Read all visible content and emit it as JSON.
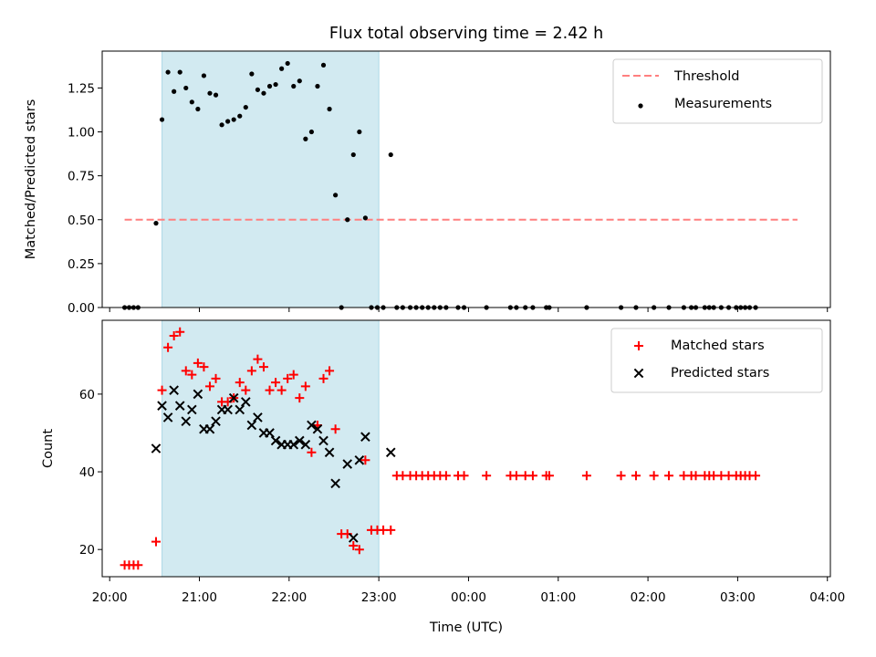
{
  "chart_data": {
    "title": "Flux total observing time = 2.42 h",
    "xlabel": "Time (UTC)",
    "x_ticks": [
      "20:00",
      "21:00",
      "22:00",
      "23:00",
      "00:00",
      "01:00",
      "02:00",
      "03:00",
      "04:00"
    ],
    "x_range": [
      "19:55",
      "04:02"
    ],
    "shaded_interval": [
      "20:35",
      "23:00"
    ],
    "shade_color": "#add8e6",
    "panels": [
      {
        "type": "scatter",
        "ylabel": "Matched/Predicted stars",
        "ylim": [
          0,
          1.46
        ],
        "yticks": [
          "0.00",
          "0.25",
          "0.50",
          "0.75",
          "1.00",
          "1.25"
        ],
        "legend_position": "top-right",
        "threshold": {
          "name": "Threshold",
          "value": 0.5,
          "x_start": "20:10",
          "x_end": "03:40",
          "color": "#ff7f7f"
        },
        "series": [
          {
            "name": "Measurements",
            "color": "#000000",
            "marker": "dot",
            "points": [
              [
                "20:10",
                0
              ],
              [
                "20:13",
                0
              ],
              [
                "20:16",
                0
              ],
              [
                "20:19",
                0
              ],
              [
                "20:31",
                0.48
              ],
              [
                "20:35",
                1.07
              ],
              [
                "20:39",
                1.34
              ],
              [
                "20:43",
                1.23
              ],
              [
                "20:47",
                1.34
              ],
              [
                "20:51",
                1.25
              ],
              [
                "20:55",
                1.17
              ],
              [
                "20:59",
                1.13
              ],
              [
                "21:03",
                1.32
              ],
              [
                "21:07",
                1.22
              ],
              [
                "21:11",
                1.21
              ],
              [
                "21:15",
                1.04
              ],
              [
                "21:19",
                1.06
              ],
              [
                "21:23",
                1.07
              ],
              [
                "21:27",
                1.09
              ],
              [
                "21:31",
                1.14
              ],
              [
                "21:35",
                1.33
              ],
              [
                "21:39",
                1.24
              ],
              [
                "21:43",
                1.22
              ],
              [
                "21:47",
                1.26
              ],
              [
                "21:51",
                1.27
              ],
              [
                "21:55",
                1.36
              ],
              [
                "21:59",
                1.39
              ],
              [
                "22:03",
                1.26
              ],
              [
                "22:07",
                1.29
              ],
              [
                "22:11",
                0.96
              ],
              [
                "22:15",
                1.0
              ],
              [
                "22:19",
                1.26
              ],
              [
                "22:23",
                1.38
              ],
              [
                "22:27",
                1.13
              ],
              [
                "22:31",
                0.64
              ],
              [
                "22:35",
                0
              ],
              [
                "22:39",
                0.5
              ],
              [
                "22:43",
                0.87
              ],
              [
                "22:47",
                1.0
              ],
              [
                "22:51",
                0.51
              ],
              [
                "22:55",
                0
              ],
              [
                "22:59",
                0
              ],
              [
                "23:03",
                0
              ],
              [
                "23:08",
                0.87
              ],
              [
                "23:12",
                0
              ],
              [
                "23:16",
                0
              ],
              [
                "23:21",
                0
              ],
              [
                "23:25",
                0
              ],
              [
                "23:29",
                0
              ],
              [
                "23:33",
                0
              ],
              [
                "23:37",
                0
              ],
              [
                "23:41",
                0
              ],
              [
                "23:45",
                0
              ],
              [
                "23:53",
                0
              ],
              [
                "23:57",
                0
              ],
              [
                "00:12",
                0
              ],
              [
                "00:28",
                0
              ],
              [
                "00:32",
                0
              ],
              [
                "00:38",
                0
              ],
              [
                "00:43",
                0
              ],
              [
                "00:52",
                0
              ],
              [
                "00:54",
                0
              ],
              [
                "01:19",
                0
              ],
              [
                "01:42",
                0
              ],
              [
                "01:52",
                0
              ],
              [
                "02:04",
                0
              ],
              [
                "02:14",
                0
              ],
              [
                "02:24",
                0
              ],
              [
                "02:29",
                0
              ],
              [
                "02:32",
                0
              ],
              [
                "02:38",
                0
              ],
              [
                "02:41",
                0
              ],
              [
                "02:44",
                0
              ],
              [
                "02:49",
                0
              ],
              [
                "02:54",
                0
              ],
              [
                "02:59",
                0
              ],
              [
                "03:02",
                0
              ],
              [
                "03:05",
                0
              ],
              [
                "03:08",
                0
              ],
              [
                "03:12",
                0
              ]
            ]
          }
        ]
      },
      {
        "type": "scatter",
        "ylabel": "Count",
        "ylim": [
          13,
          79
        ],
        "yticks": [
          "20",
          "40",
          "60"
        ],
        "legend_position": "top-right",
        "series": [
          {
            "name": "Matched stars",
            "color": "#ff0000",
            "marker": "plus",
            "points": [
              [
                "20:10",
                16
              ],
              [
                "20:13",
                16
              ],
              [
                "20:16",
                16
              ],
              [
                "20:19",
                16
              ],
              [
                "20:31",
                22
              ],
              [
                "20:35",
                61
              ],
              [
                "20:39",
                72
              ],
              [
                "20:43",
                75
              ],
              [
                "20:47",
                76
              ],
              [
                "20:51",
                66
              ],
              [
                "20:55",
                65
              ],
              [
                "20:59",
                68
              ],
              [
                "21:03",
                67
              ],
              [
                "21:07",
                62
              ],
              [
                "21:11",
                64
              ],
              [
                "21:15",
                58
              ],
              [
                "21:19",
                58
              ],
              [
                "21:23",
                59
              ],
              [
                "21:27",
                63
              ],
              [
                "21:31",
                61
              ],
              [
                "21:35",
                66
              ],
              [
                "21:39",
                69
              ],
              [
                "21:43",
                67
              ],
              [
                "21:47",
                61
              ],
              [
                "21:51",
                63
              ],
              [
                "21:55",
                61
              ],
              [
                "21:59",
                64
              ],
              [
                "22:03",
                65
              ],
              [
                "22:07",
                59
              ],
              [
                "22:11",
                62
              ],
              [
                "22:15",
                45
              ],
              [
                "22:19",
                52
              ],
              [
                "22:23",
                64
              ],
              [
                "22:27",
                66
              ],
              [
                "22:31",
                51
              ],
              [
                "22:35",
                24
              ],
              [
                "22:39",
                24
              ],
              [
                "22:43",
                21
              ],
              [
                "22:47",
                20
              ],
              [
                "22:51",
                43
              ],
              [
                "22:55",
                25
              ],
              [
                "22:59",
                25
              ],
              [
                "23:03",
                25
              ],
              [
                "23:08",
                25
              ],
              [
                "23:12",
                39
              ],
              [
                "23:16",
                39
              ],
              [
                "23:21",
                39
              ],
              [
                "23:25",
                39
              ],
              [
                "23:29",
                39
              ],
              [
                "23:33",
                39
              ],
              [
                "23:37",
                39
              ],
              [
                "23:41",
                39
              ],
              [
                "23:45",
                39
              ],
              [
                "23:53",
                39
              ],
              [
                "23:57",
                39
              ],
              [
                "00:12",
                39
              ],
              [
                "00:28",
                39
              ],
              [
                "00:32",
                39
              ],
              [
                "00:38",
                39
              ],
              [
                "00:43",
                39
              ],
              [
                "00:52",
                39
              ],
              [
                "00:54",
                39
              ],
              [
                "01:19",
                39
              ],
              [
                "01:42",
                39
              ],
              [
                "01:52",
                39
              ],
              [
                "02:04",
                39
              ],
              [
                "02:14",
                39
              ],
              [
                "02:24",
                39
              ],
              [
                "02:29",
                39
              ],
              [
                "02:32",
                39
              ],
              [
                "02:38",
                39
              ],
              [
                "02:41",
                39
              ],
              [
                "02:44",
                39
              ],
              [
                "02:49",
                39
              ],
              [
                "02:54",
                39
              ],
              [
                "02:59",
                39
              ],
              [
                "03:02",
                39
              ],
              [
                "03:05",
                39
              ],
              [
                "03:08",
                39
              ],
              [
                "03:12",
                39
              ]
            ]
          },
          {
            "name": "Predicted stars",
            "color": "#000000",
            "marker": "x",
            "points": [
              [
                "20:31",
                46
              ],
              [
                "20:35",
                57
              ],
              [
                "20:39",
                54
              ],
              [
                "20:43",
                61
              ],
              [
                "20:47",
                57
              ],
              [
                "20:51",
                53
              ],
              [
                "20:55",
                56
              ],
              [
                "20:59",
                60
              ],
              [
                "21:03",
                51
              ],
              [
                "21:07",
                51
              ],
              [
                "21:11",
                53
              ],
              [
                "21:15",
                56
              ],
              [
                "21:19",
                56
              ],
              [
                "21:23",
                59
              ],
              [
                "21:27",
                56
              ],
              [
                "21:31",
                58
              ],
              [
                "21:35",
                52
              ],
              [
                "21:39",
                54
              ],
              [
                "21:43",
                50
              ],
              [
                "21:47",
                50
              ],
              [
                "21:51",
                48
              ],
              [
                "21:55",
                47
              ],
              [
                "21:59",
                47
              ],
              [
                "22:03",
                47
              ],
              [
                "22:07",
                48
              ],
              [
                "22:11",
                47
              ],
              [
                "22:15",
                52
              ],
              [
                "22:19",
                51
              ],
              [
                "22:23",
                48
              ],
              [
                "22:27",
                45
              ],
              [
                "22:31",
                37
              ],
              [
                "22:39",
                42
              ],
              [
                "22:43",
                23
              ],
              [
                "22:47",
                43
              ],
              [
                "22:51",
                49
              ],
              [
                "23:08",
                45
              ]
            ]
          }
        ]
      }
    ]
  }
}
